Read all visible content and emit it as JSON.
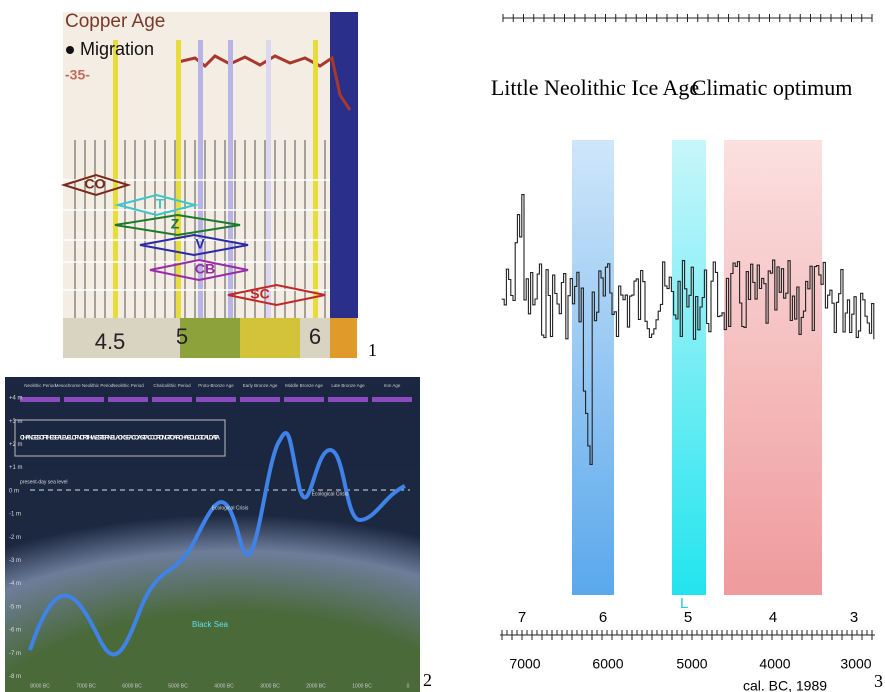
{
  "panel1": {
    "title": "Copper Age",
    "legend": "Migration",
    "marker": "-35-",
    "cultures": [
      "CO",
      "T",
      "Z",
      "V",
      "CB",
      "SC"
    ],
    "axis": [
      "4.5",
      "5",
      "6"
    ],
    "number": "1"
  },
  "panel2": {
    "periods": [
      "Neolithic Period",
      "Mesochrome Neolithic Period",
      "Neolithic Period",
      "Chalcolithic Period",
      "Proto-Bronze Age",
      "Early Bronze Age",
      "Middle Bronze Age",
      "Late Bronze Age",
      "Iron Age"
    ],
    "title": "CHANGES OF THE SEA LEVEL OF NORTH-WESTERN BLACK SEA COAST ACCORDING TO ARCHAEOLOGICAL DATA",
    "levels": [
      "+4 m",
      "+3 m",
      "+2 m",
      "+1 m",
      "0 m",
      "-1 m",
      "-2 m",
      "-3 m",
      "-4 m",
      "-5 m",
      "-6 m",
      "-7 m",
      "-8 m"
    ],
    "present": "present-day sea level",
    "crisis": "Ecological Crisis",
    "sea": "Black Sea",
    "axis": [
      "8000 BC",
      "7000 BC",
      "6000 BC",
      "5000 BC",
      "4000 BC",
      "3000 BC",
      "2000 BC",
      "1000 BC",
      "0"
    ],
    "number": "2"
  },
  "panel3": {
    "ice_age": "Little Neolithic Ice Age",
    "optimum": "Climatic optimum",
    "top_axis": [
      "7",
      "6",
      "5",
      "4",
      "3"
    ],
    "marker": "L",
    "bottom_axis": [
      "7000",
      "6000",
      "5000",
      "4000",
      "3000"
    ],
    "caption": "cal. BC, 1989",
    "number": "3"
  }
}
